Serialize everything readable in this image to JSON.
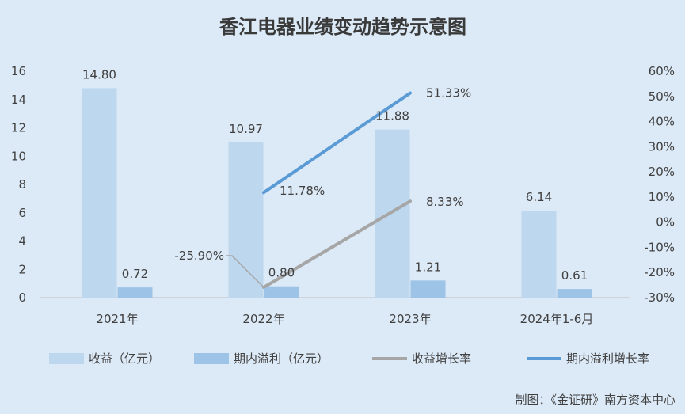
{
  "chart_data": {
    "type": "bar",
    "title": "香江电器业绩变动趋势示意图",
    "categories": [
      "2021年",
      "2022年",
      "2023年",
      "2024年1-6月"
    ],
    "y_left": {
      "ylim": [
        0,
        16
      ],
      "ticks": [
        "0",
        "2",
        "4",
        "6",
        "8",
        "10",
        "12",
        "14",
        "16"
      ]
    },
    "y_right": {
      "ylim": [
        -30,
        60
      ],
      "ticks": [
        "-30%",
        "-20%",
        "-10%",
        "0%",
        "10%",
        "20%",
        "30%",
        "40%",
        "50%",
        "60%"
      ]
    },
    "series": [
      {
        "name": "收益（亿元）",
        "kind": "bar",
        "axis": "left",
        "color": "#bdd7ee",
        "values": [
          14.8,
          10.97,
          11.88,
          6.14
        ],
        "labels": [
          "14.80",
          "10.97",
          "11.88",
          "6.14"
        ]
      },
      {
        "name": "期内溢利（亿元）",
        "kind": "bar",
        "axis": "left",
        "color": "#9dc3e6",
        "values": [
          0.72,
          0.8,
          1.21,
          0.61
        ],
        "labels": [
          "0.72",
          "0.80",
          "1.21",
          "0.61"
        ]
      },
      {
        "name": "收益增长率",
        "kind": "line",
        "axis": "right",
        "color": "#a6a6a6",
        "values": [
          null,
          -25.9,
          8.33,
          null
        ],
        "labels": [
          "",
          "-25.90%",
          "8.33%",
          ""
        ]
      },
      {
        "name": "期内溢利增长率",
        "kind": "line",
        "axis": "right",
        "color": "#5b9bd5",
        "values": [
          null,
          11.78,
          51.33,
          null
        ],
        "labels": [
          "",
          "11.78%",
          "51.33%",
          ""
        ]
      }
    ],
    "legend_position": "bottom",
    "grid": false
  },
  "source": "制图：《金证研》南方资本中心"
}
